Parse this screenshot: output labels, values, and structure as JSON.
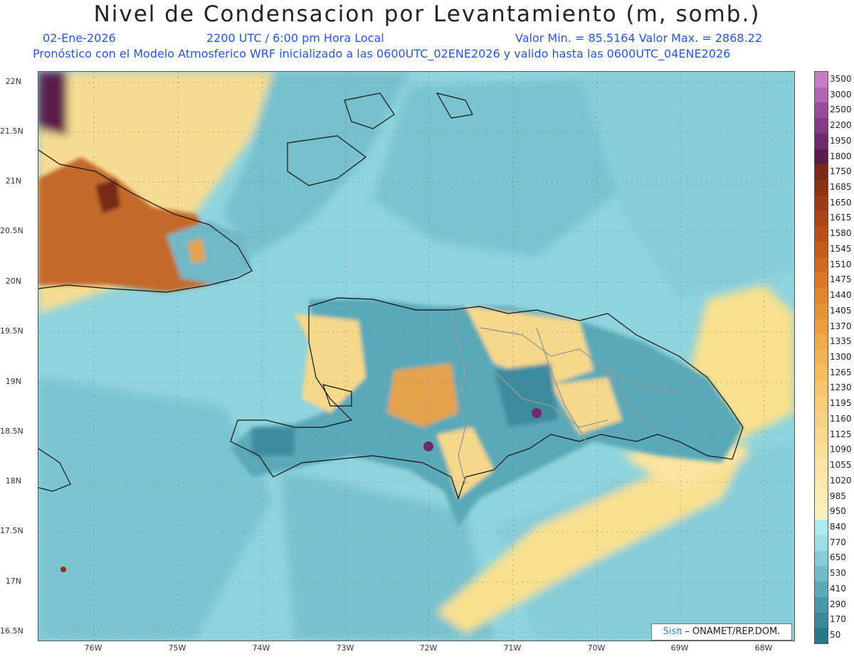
{
  "title": "Nivel de Condensacion por Levantamiento (m, somb.)",
  "subtitle": {
    "date": "02-Ene-2026",
    "time": "2200 UTC / 6:00 pm Hora Local",
    "minmax": "Valor Min. = 85.5164   Valor Max. = 2868.22",
    "model": "Pronóstico con el Modelo Atmosferico WRF inicializado a las 0600UTC_02ENE2026 y valido hasta las  0600UTC_04ENE2026"
  },
  "axes": {
    "lat_labels": [
      "22N",
      "21.5N",
      "21N",
      "20.5N",
      "20N",
      "19.5N",
      "19N",
      "18.5N",
      "18N",
      "17.5N",
      "17N",
      "16.5N"
    ],
    "lon_labels": [
      "76W",
      "75W",
      "74W",
      "73W",
      "72W",
      "71W",
      "70W",
      "69W",
      "68W"
    ]
  },
  "colorbar": {
    "labels": [
      "3500",
      "3000",
      "2500",
      "2200",
      "1950",
      "1800",
      "1750",
      "1685",
      "1650",
      "1615",
      "1580",
      "1545",
      "1510",
      "1475",
      "1440",
      "1405",
      "1370",
      "1335",
      "1300",
      "1265",
      "1230",
      "1195",
      "1160",
      "1125",
      "1090",
      "1055",
      "1020",
      "985",
      "950",
      "840",
      "770",
      "650",
      "530",
      "410",
      "290",
      "170",
      "50"
    ],
    "colors": [
      "#c47fc4",
      "#b065b0",
      "#9a4a9c",
      "#853a85",
      "#6e2b6c",
      "#5a1d4a",
      "#7a2a18",
      "#8c3214",
      "#9c3c14",
      "#ac4616",
      "#ba5018",
      "#c65c1c",
      "#d06a22",
      "#d87828",
      "#e08630",
      "#e6943a",
      "#ec9f42",
      "#efaa4c",
      "#f2b456",
      "#f4bc60",
      "#f6c46c",
      "#f8cc78",
      "#f8d284",
      "#f9d890",
      "#fade9a",
      "#fbe4a4",
      "#fbe8ac",
      "#fcecb4",
      "#fcf0bc",
      "#aeeaf0",
      "#9cdde6",
      "#86cdd8",
      "#70bcc8",
      "#5aaab8",
      "#4898a8",
      "#3a8898",
      "#2c7888"
    ]
  },
  "colors": {
    "ocean": "#8fd3dd",
    "ocean_dark": "#74c0cc",
    "land_blue": "#5aa9b8",
    "land_yellow": "#f5d88a",
    "land_orange": "#e3a24c",
    "cuba_brown": "#c36a2a",
    "purple": "#5a1d4a",
    "coast": "#111111",
    "border": "#999999"
  },
  "credit": {
    "sis": "Sisπ",
    "rest": "– ONAMET/REP.DOM."
  }
}
